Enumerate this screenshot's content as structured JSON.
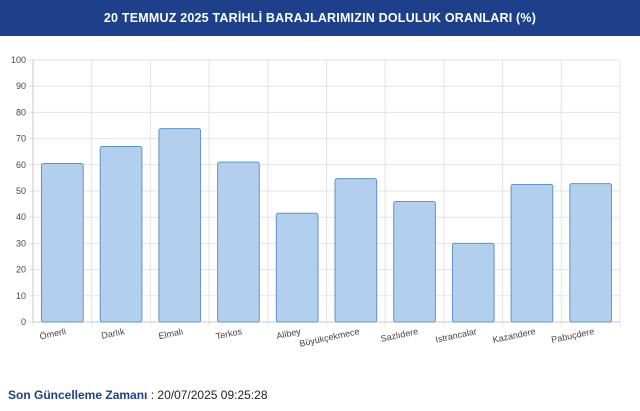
{
  "header": {
    "title": "20 TEMMUZ 2025 TARİHLİ BARAJLARIMIZIN DOLULUK ORANLARI (%)"
  },
  "chart_data": {
    "type": "bar",
    "title": "20 TEMMUZ 2025 TARİHLİ BARAJLARIMIZIN DOLULUK ORANLARI (%)",
    "categories": [
      "Ömerli",
      "Darlık",
      "Elmalı",
      "Terkos",
      "Alibey",
      "Büyükçekmece",
      "Sazlıdere",
      "Istrancalar",
      "Kazandere",
      "Pabuçdere"
    ],
    "values": [
      60.5,
      67,
      73.8,
      61,
      41.5,
      54.7,
      46,
      30,
      52.5,
      52.8
    ],
    "ylim": [
      0,
      100
    ],
    "yticks": [
      0,
      10,
      20,
      30,
      40,
      50,
      60,
      70,
      80,
      90,
      100
    ],
    "grid": true,
    "bar_color": "#b3cfee",
    "bar_border": "#5f94c9",
    "grid_color": "#e3e3e3"
  },
  "footer": {
    "label": "Son Güncelleme Zamanı",
    "separator": " : ",
    "value": "20/07/2025 09:25:28"
  }
}
